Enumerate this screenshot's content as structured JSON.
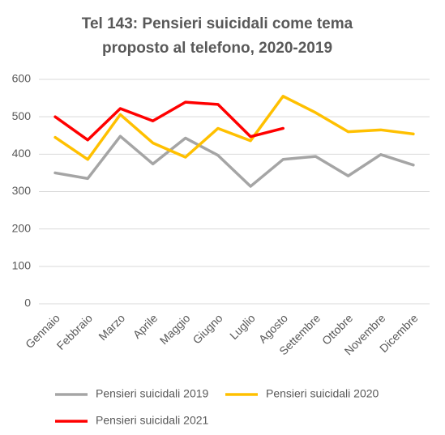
{
  "chart_data": {
    "type": "line",
    "title": [
      "Tel 143: Pensieri suicidali come tema",
      "proposto al telefono, 2020-2019"
    ],
    "categories": [
      "Gennaio",
      "Febbraio",
      "Marzo",
      "Aprile",
      "Maggio",
      "Giugno",
      "Luglio",
      "Agosto",
      "Settembre",
      "Ottobre",
      "Novembre",
      "Dicembre"
    ],
    "series": [
      {
        "name": "Pensieri suicidali 2019",
        "color": "#a5a5a5",
        "values": [
          350,
          335,
          448,
          374,
          443,
          397,
          314,
          386,
          394,
          342,
          399,
          371
        ]
      },
      {
        "name": "Pensieri suicidali 2020",
        "color": "#ffc000",
        "values": [
          445,
          386,
          506,
          430,
          392,
          469,
          436,
          555,
          511,
          460,
          465,
          454
        ]
      },
      {
        "name": "Pensieri suicidali 2021",
        "color": "#ff0000",
        "values": [
          500,
          438,
          522,
          489,
          539,
          533,
          447,
          469,
          null,
          null,
          null,
          null
        ]
      }
    ],
    "ylim": [
      0,
      600
    ],
    "yticks": [
      0,
      100,
      200,
      300,
      400,
      500,
      600
    ],
    "grid": true,
    "legend": "bottom"
  }
}
